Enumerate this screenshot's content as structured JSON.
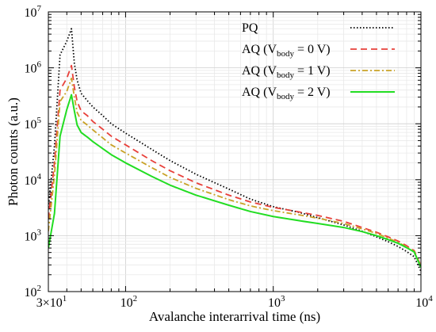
{
  "chart_data": {
    "type": "line",
    "title": "",
    "xlabel": "Avalanche interarrival time (ns)",
    "ylabel": "Photon counts (a.u.)",
    "xscale": "log",
    "yscale": "log",
    "xlim": [
      30,
      10000
    ],
    "ylim": [
      100,
      10000000
    ],
    "grid": true,
    "legend_position": "top-right",
    "x_ticks": [
      {
        "value": 30,
        "label": "3×10",
        "sup": "1"
      },
      {
        "value": 100,
        "label": "10",
        "sup": "2"
      },
      {
        "value": 1000,
        "label": "10",
        "sup": "3"
      },
      {
        "value": 10000,
        "label": "10",
        "sup": "4"
      }
    ],
    "y_ticks": [
      {
        "value": 100,
        "label": "10",
        "sup": "2"
      },
      {
        "value": 1000,
        "label": "10",
        "sup": "3"
      },
      {
        "value": 10000,
        "label": "10",
        "sup": "4"
      },
      {
        "value": 100000,
        "label": "10",
        "sup": "5"
      },
      {
        "value": 1000000,
        "label": "10",
        "sup": "6"
      },
      {
        "value": 10000000,
        "label": "10",
        "sup": "7"
      }
    ],
    "series": [
      {
        "name": "PQ",
        "legend": {
          "main": "PQ",
          "sub": "",
          "tail": ""
        },
        "color": "#000000",
        "style": "dotted",
        "x": [
          30,
          33,
          36,
          40,
          43,
          45,
          47,
          50,
          55,
          60,
          70,
          80,
          100,
          150,
          200,
          300,
          500,
          700,
          1000,
          1500,
          2000,
          3000,
          4000,
          5000,
          6000,
          7000,
          8000,
          9000,
          10000
        ],
        "y": [
          3200,
          40000,
          1700000,
          3000000,
          5000000,
          1200000,
          600000,
          350000,
          260000,
          200000,
          140000,
          100000,
          68000,
          35000,
          22000,
          12500,
          6800,
          4500,
          3300,
          2600,
          2100,
          1550,
          1200,
          950,
          780,
          640,
          520,
          420,
          230
        ]
      },
      {
        "name": "AQ (Vbody = 0 V)",
        "legend": {
          "main": "AQ (V",
          "sub": "body",
          "tail": " = 0 V)"
        },
        "color": "#e8403a",
        "style": "dashed",
        "x": [
          30,
          33,
          36,
          40,
          43,
          45,
          47,
          50,
          55,
          60,
          70,
          80,
          100,
          150,
          200,
          300,
          500,
          700,
          1000,
          1500,
          2000,
          3000,
          4000,
          5000,
          6000,
          7000,
          8000,
          9000,
          10000
        ],
        "y": [
          2000,
          20000,
          400000,
          650000,
          1100000,
          450000,
          250000,
          170000,
          140000,
          110000,
          80000,
          60000,
          42000,
          22000,
          14500,
          8800,
          5300,
          4000,
          3200,
          2650,
          2300,
          1800,
          1400,
          1150,
          950,
          800,
          660,
          540,
          290
        ]
      },
      {
        "name": "AQ (Vbody = 1 V)",
        "legend": {
          "main": "AQ (V",
          "sub": "body",
          "tail": " = 1 V)"
        },
        "color": "#c9a227",
        "style": "dashdot",
        "x": [
          30,
          33,
          36,
          40,
          43,
          45,
          47,
          50,
          55,
          60,
          70,
          80,
          100,
          150,
          200,
          300,
          500,
          700,
          1000,
          1500,
          2000,
          3000,
          4000,
          5000,
          6000,
          7000,
          8000,
          9000,
          10000
        ],
        "y": [
          1200,
          12000,
          250000,
          380000,
          650000,
          300000,
          160000,
          115000,
          95000,
          78000,
          56000,
          42000,
          30000,
          16500,
          11000,
          7000,
          4400,
          3400,
          2800,
          2350,
          2050,
          1650,
          1320,
          1100,
          900,
          760,
          630,
          520,
          280
        ]
      },
      {
        "name": "AQ (Vbody = 2 V)",
        "legend": {
          "main": "AQ (V",
          "sub": "body",
          "tail": " = 2 V)"
        },
        "color": "#22dd22",
        "style": "solid",
        "x": [
          30,
          33,
          36,
          40,
          43,
          45,
          47,
          50,
          55,
          60,
          70,
          80,
          100,
          150,
          200,
          300,
          500,
          700,
          1000,
          1500,
          2000,
          3000,
          4000,
          5000,
          6000,
          7000,
          8000,
          9000,
          10000
        ],
        "y": [
          600,
          2500,
          60000,
          180000,
          330000,
          170000,
          95000,
          70000,
          58000,
          48000,
          36000,
          28000,
          20000,
          11500,
          8000,
          5300,
          3500,
          2700,
          2200,
          1850,
          1650,
          1400,
          1180,
          1000,
          850,
          730,
          610,
          510,
          270
        ]
      }
    ]
  }
}
